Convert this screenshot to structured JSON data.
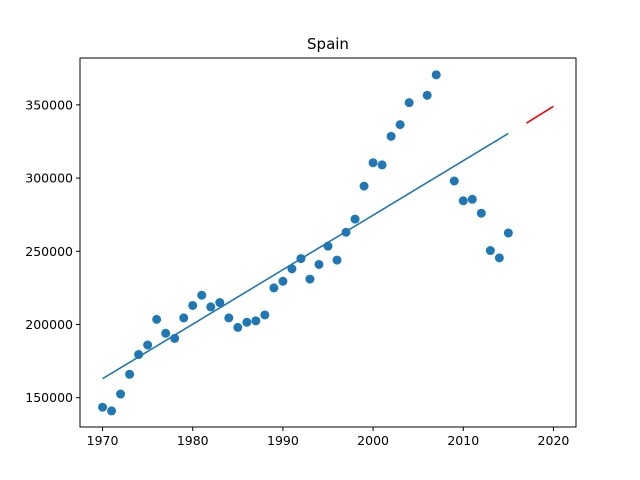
{
  "chart_data": {
    "type": "scatter",
    "title": "Spain",
    "xlabel": "",
    "ylabel": "",
    "xlim": [
      1967.5,
      2022.5
    ],
    "ylim": [
      130000,
      382000
    ],
    "xticks": [
      1970,
      1980,
      1990,
      2000,
      2010,
      2020
    ],
    "yticks": [
      150000,
      200000,
      250000,
      300000,
      350000
    ],
    "ytick_labels": [
      "150000",
      "200000",
      "250000",
      "300000",
      "350000"
    ],
    "grid": false,
    "legend": "none",
    "series": [
      {
        "kind": "scatter",
        "color": "#1f77b4",
        "points": [
          [
            1970,
            143500
          ],
          [
            1971,
            141000
          ],
          [
            1972,
            152500
          ],
          [
            1973,
            166000
          ],
          [
            1974,
            179500
          ],
          [
            1975,
            186000
          ],
          [
            1976,
            203500
          ],
          [
            1977,
            194000
          ],
          [
            1978,
            190500
          ],
          [
            1979,
            204500
          ],
          [
            1980,
            213000
          ],
          [
            1981,
            220000
          ],
          [
            1982,
            212000
          ],
          [
            1983,
            215000
          ],
          [
            1984,
            204500
          ],
          [
            1985,
            198000
          ],
          [
            1986,
            201500
          ],
          [
            1987,
            202500
          ],
          [
            1988,
            206500
          ],
          [
            1989,
            225000
          ],
          [
            1990,
            229500
          ],
          [
            1991,
            238000
          ],
          [
            1992,
            245000
          ],
          [
            1993,
            231000
          ],
          [
            1994,
            241000
          ],
          [
            1995,
            253500
          ],
          [
            1996,
            244000
          ],
          [
            1997,
            263000
          ],
          [
            1998,
            272000
          ],
          [
            1999,
            294500
          ],
          [
            2000,
            310500
          ],
          [
            2001,
            309000
          ],
          [
            2002,
            328500
          ],
          [
            2003,
            336500
          ],
          [
            2004,
            351500
          ],
          [
            2006,
            356500
          ],
          [
            2007,
            370500
          ],
          [
            2009,
            298000
          ],
          [
            2010,
            284500
          ],
          [
            2011,
            285500
          ],
          [
            2012,
            276000
          ],
          [
            2013,
            250500
          ],
          [
            2014,
            245500
          ],
          [
            2015,
            262500
          ]
        ]
      },
      {
        "kind": "line",
        "color": "#1f77b4",
        "points": [
          [
            1970,
            163000
          ],
          [
            2015,
            330500
          ]
        ]
      },
      {
        "kind": "line",
        "color": "#ff0000",
        "points": [
          [
            2017,
            337500
          ],
          [
            2020,
            349000
          ]
        ]
      }
    ]
  }
}
